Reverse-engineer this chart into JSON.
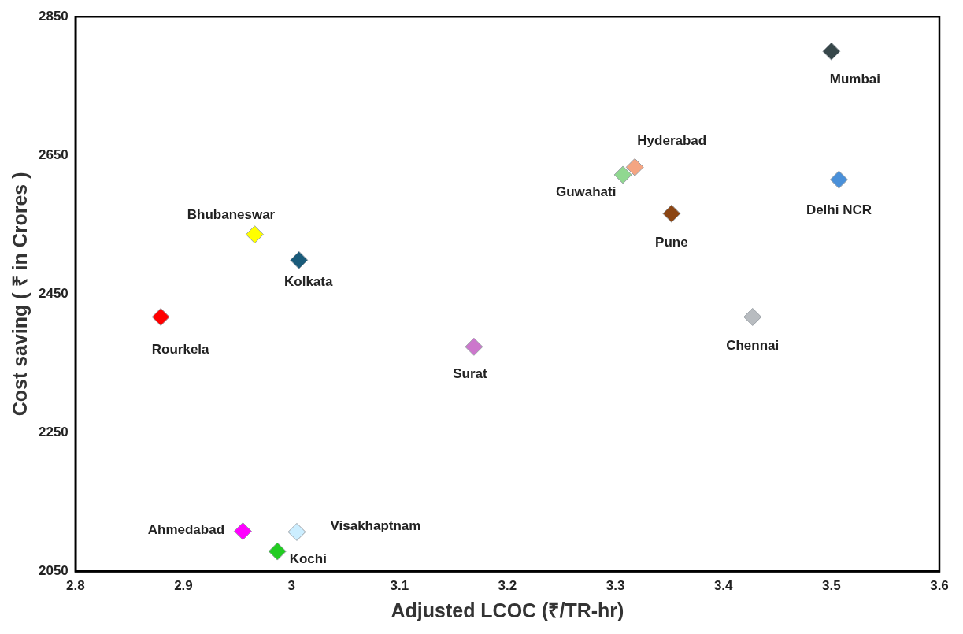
{
  "chart_data": {
    "type": "scatter",
    "xlabel": "Adjusted LCOC (₹/TR-hr)",
    "ylabel": "Cost saving ( ₹ in Crores )",
    "xlim": [
      2.8,
      3.6
    ],
    "xticks": [
      2.8,
      2.9,
      3,
      3.1,
      3.2,
      3.3,
      3.4,
      3.5,
      3.6
    ],
    "ylim": [
      2050,
      2850
    ],
    "yticks": [
      2050,
      2250,
      2450,
      2650,
      2850
    ],
    "grid": false,
    "legend": false,
    "marker": "diamond",
    "series": [
      {
        "name": "Mumbai",
        "color": "#37474a",
        "x": [
          3.5
        ],
        "values": [
          2800
        ]
      },
      {
        "name": "Hyderabad",
        "color": "#f4a582",
        "x": [
          3.318
        ],
        "values": [
          2633
        ]
      },
      {
        "name": "Guwahati",
        "color": "#90d890",
        "x": [
          3.307
        ],
        "values": [
          2622
        ]
      },
      {
        "name": "Delhi NCR",
        "color": "#4a90d9",
        "x": [
          3.507
        ],
        "values": [
          2615
        ]
      },
      {
        "name": "Pune",
        "color": "#8b4513",
        "x": [
          3.352
        ],
        "values": [
          2566
        ]
      },
      {
        "name": "Bhubaneswar",
        "color": "#ffff00",
        "x": [
          2.966
        ],
        "values": [
          2536
        ]
      },
      {
        "name": "Kolkata",
        "color": "#1a5b7a",
        "x": [
          3.007
        ],
        "values": [
          2499
        ]
      },
      {
        "name": "Rourkela",
        "color": "#ff0000",
        "x": [
          2.879
        ],
        "values": [
          2417
        ]
      },
      {
        "name": "Chennai",
        "color": "#b8bcc0",
        "x": [
          3.427
        ],
        "values": [
          2417
        ]
      },
      {
        "name": "Surat",
        "color": "#cc77cc",
        "x": [
          3.169
        ],
        "values": [
          2374
        ]
      },
      {
        "name": "Ahmedabad",
        "color": "#ff00ff",
        "x": [
          2.955
        ],
        "values": [
          2108
        ]
      },
      {
        "name": "Visakhaptnam",
        "color": "#cceeff",
        "x": [
          3.005
        ],
        "values": [
          2107
        ]
      },
      {
        "name": "Kochi",
        "color": "#22cc22",
        "x": [
          2.987
        ],
        "values": [
          2079
        ]
      }
    ]
  }
}
